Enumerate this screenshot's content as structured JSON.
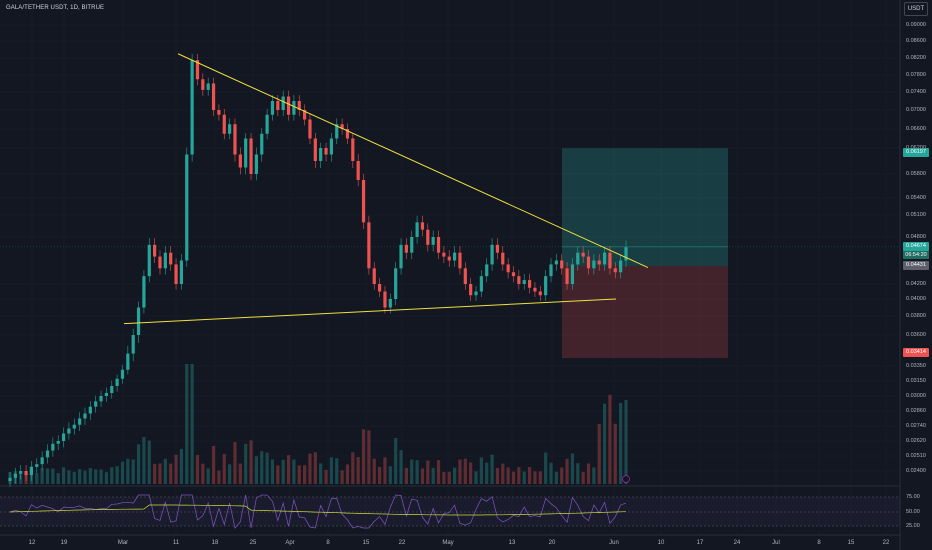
{
  "header": {
    "title": "GALA/TETHER USDT, 1D, BITRUE",
    "unit_button": "USDT"
  },
  "theme": {
    "background": "#131722",
    "up_color": "#26a69a",
    "down_color": "#ef5350",
    "trendline_color": "#f0e03c",
    "rsi_line_color": "#7e57c2",
    "rsi_ma_color": "#cddc39"
  },
  "price_axis": {
    "labels": [
      "0.09000",
      "0.08600",
      "0.08200",
      "0.07800",
      "0.07400",
      "0.07000",
      "0.06600",
      "0.06200",
      "0.05800",
      "0.05400",
      "0.05100",
      "0.04800",
      "0.04200",
      "0.04000",
      "0.03800",
      "0.03600",
      "0.03350",
      "0.03150",
      "0.03000",
      "0.02860",
      "0.02740",
      "0.02620",
      "0.02510",
      "0.02400"
    ]
  },
  "price_tags": {
    "target": {
      "value": "0.06197",
      "color": "#26a69a"
    },
    "current": {
      "value": "0.04674",
      "countdown": "06:54:20",
      "color": "#26a69a"
    },
    "entry": {
      "value": "0.04431",
      "color": "#5d606b"
    },
    "stop": {
      "value": "0.03414",
      "color": "#ef5350"
    }
  },
  "rsi_axis": {
    "labels": [
      "75.00",
      "50.00",
      "25.00"
    ]
  },
  "time_axis": {
    "labels": [
      "12",
      "19",
      "Mar",
      "11",
      "18",
      "25",
      "Apr",
      "8",
      "15",
      "22",
      "May",
      "13",
      "20",
      "Jun",
      "10",
      "17",
      "24",
      "Jul",
      "8",
      "15",
      "22"
    ]
  },
  "chart_data": {
    "type": "candlestick",
    "symbol": "GALA/TETHER USDT",
    "interval": "1D",
    "exchange": "BITRUE",
    "trendlines": [
      {
        "name": "",
        "from": {
          "x": "Mar 5",
          "y": 0.083
        },
        "to": {
          "x": "Jun 5",
          "y": 0.0441
        }
      },
      {
        "name": "",
        "from": {
          "x": "Feb 25",
          "y": 0.0372
        },
        "to": {
          "x": "Jun 2",
          "y": 0.04
        }
      }
    ],
    "position": {
      "entry": 0.04431,
      "target": 0.06197,
      "stop": 0.03414
    },
    "last_price": 0.04674,
    "volume_spike_region": "late May – early June",
    "rsi_levels": [
      75,
      50,
      25
    ]
  }
}
